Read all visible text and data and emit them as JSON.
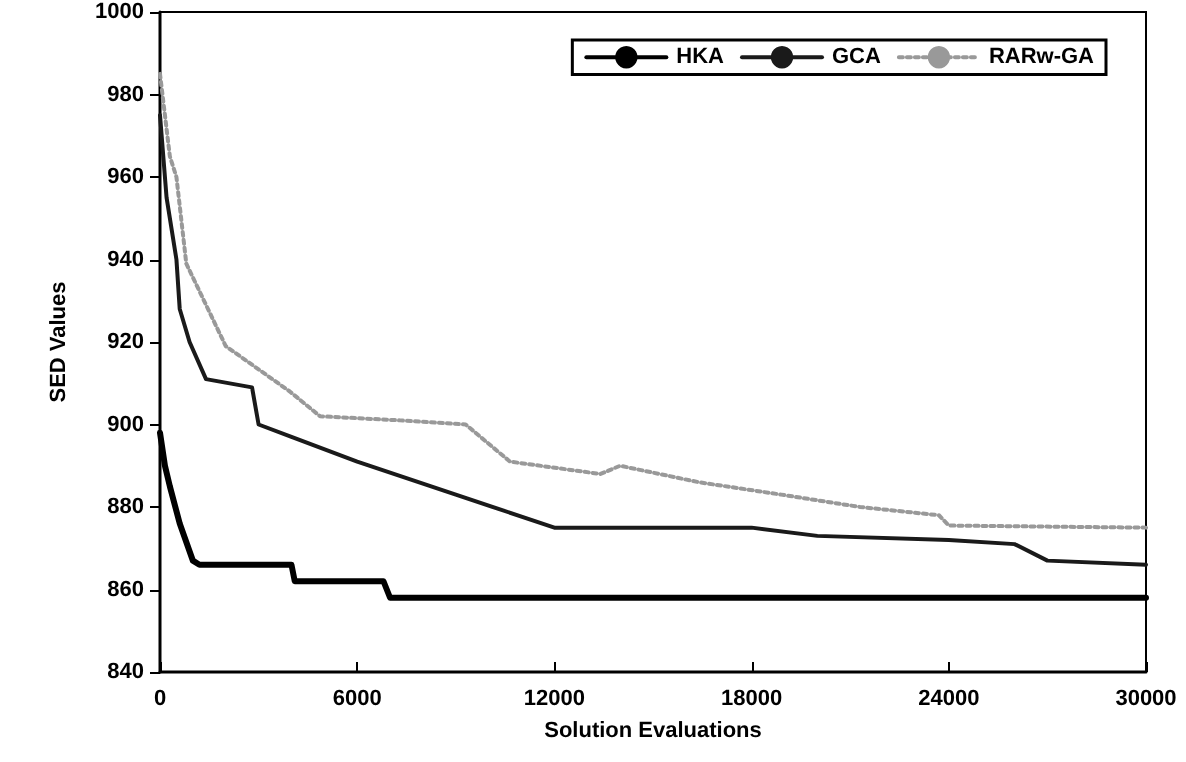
{
  "chart_data": {
    "type": "line",
    "xlabel": "Solution Evaluations",
    "ylabel": "SED Values",
    "xlim": [
      0,
      30000
    ],
    "xticks": [
      0,
      6000,
      12000,
      18000,
      24000,
      30000
    ],
    "ylim": [
      840,
      1000
    ],
    "yticks": [
      840,
      860,
      880,
      900,
      920,
      940,
      960,
      980,
      1000
    ],
    "grid": false,
    "legend": "top right",
    "marker": "none",
    "series": [
      {
        "name": "HKA",
        "color": "#000000",
        "line_style": "solid",
        "x": [
          0,
          150,
          300,
          600,
          1000,
          1200,
          4000,
          4100,
          6800,
          7000,
          30000
        ],
        "values": [
          898,
          890,
          885,
          876,
          867,
          866,
          866,
          862,
          862,
          858,
          858
        ]
      },
      {
        "name": "GCA",
        "color": "#1a1a1a",
        "line_style": "solid",
        "x": [
          0,
          200,
          500,
          600,
          900,
          1400,
          2800,
          3000,
          4000,
          6000,
          9000,
          12000,
          15000,
          18000,
          20000,
          24000,
          26000,
          27000,
          30000
        ],
        "values": [
          975,
          955,
          940,
          928,
          920,
          911,
          909,
          900,
          897,
          891,
          883,
          875,
          875,
          875,
          873,
          872,
          871,
          867,
          866
        ]
      },
      {
        "name": "RARw-GA",
        "color": "#999999",
        "line_style": "dotted",
        "x": [
          0,
          300,
          500,
          800,
          2000,
          3950,
          4870,
          7300,
          9300,
          10650,
          13400,
          14000,
          16400,
          18900,
          21300,
          23700,
          24000,
          30000
        ],
        "values": [
          985,
          965,
          960,
          939,
          919,
          908,
          902,
          901,
          900,
          891,
          888,
          890,
          886,
          883,
          880,
          878,
          875.5,
          875
        ]
      }
    ]
  }
}
